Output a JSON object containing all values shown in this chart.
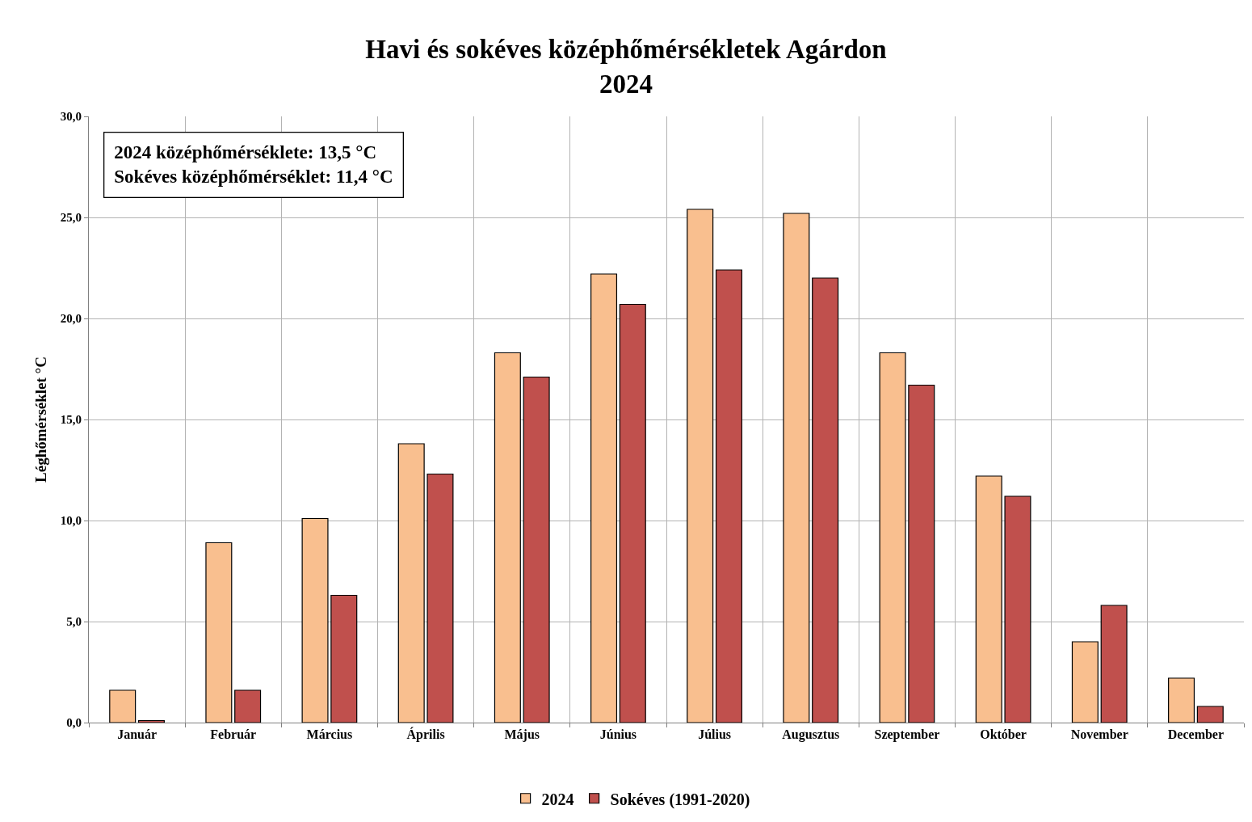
{
  "chart_data": {
    "type": "bar",
    "title": "Havi és sokéves középhőmérsékletek Agárdon",
    "subtitle": "2024",
    "ylabel": "Léghőmérséklet °C",
    "categories": [
      "Január",
      "Február",
      "Március",
      "Április",
      "Május",
      "Június",
      "Július",
      "Augusztus",
      "Szeptember",
      "Október",
      "November",
      "December"
    ],
    "series": [
      {
        "name": "2024",
        "color": "#f9bf8f",
        "values": [
          1.6,
          8.9,
          10.1,
          13.8,
          18.3,
          22.2,
          25.4,
          25.2,
          18.3,
          12.2,
          4.0,
          2.2
        ]
      },
      {
        "name": "Sokéves (1991-2020)",
        "color": "#c0504d",
        "values": [
          0.1,
          1.6,
          6.3,
          12.3,
          17.1,
          20.7,
          22.4,
          22.0,
          16.7,
          11.2,
          5.8,
          0.8
        ]
      }
    ],
    "ylim": [
      0,
      30
    ],
    "yticks": [
      {
        "value": 0,
        "label": "0,0"
      },
      {
        "value": 5,
        "label": "5,0"
      },
      {
        "value": 10,
        "label": "10,0"
      },
      {
        "value": 15,
        "label": "15,0"
      },
      {
        "value": 20,
        "label": "20,0"
      },
      {
        "value": 25,
        "label": "25,0"
      },
      {
        "value": 30,
        "label": "30,0"
      }
    ],
    "grid": true,
    "legend": "bottom",
    "annotations": [
      "2024 középhőmérséklete: 13,5 °C",
      "Sokéves középhőmérséklet: 11,4 °C"
    ]
  }
}
